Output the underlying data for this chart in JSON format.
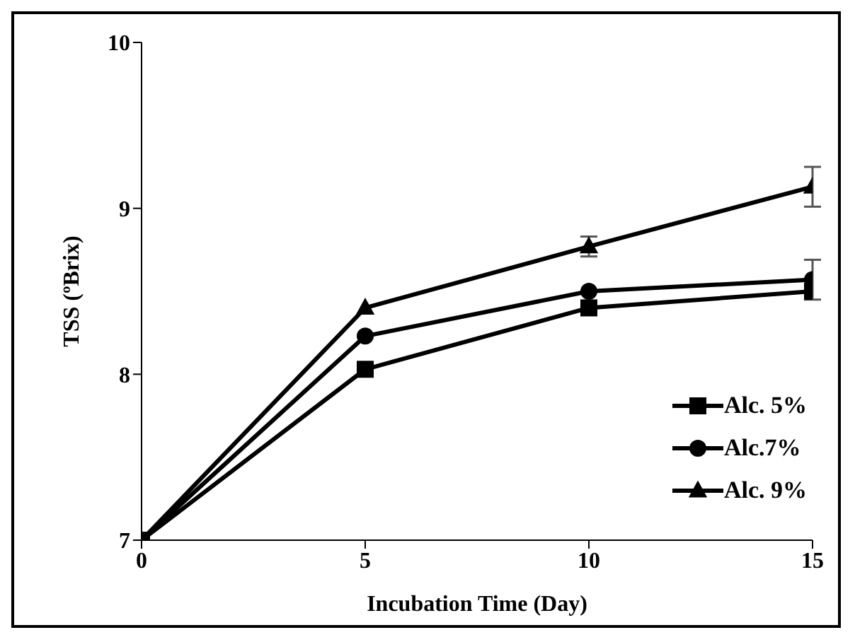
{
  "chart_data": {
    "type": "line",
    "xlabel": "Incubation Time (Day)",
    "ylabel": "TSS  (ºBrix)",
    "x": [
      0,
      5,
      10,
      15
    ],
    "series": [
      {
        "name": "Alc. 5%",
        "color": "#000000",
        "marker": "square",
        "values": [
          7,
          8.03,
          8.4,
          8.5
        ]
      },
      {
        "name": "Alc.7%",
        "color": "#000000",
        "marker": "circle",
        "values": [
          7,
          8.23,
          8.5,
          8.57
        ],
        "errors": [
          null,
          null,
          null,
          0.12
        ]
      },
      {
        "name": "Alc. 9%",
        "color": "#000000",
        "marker": "triangle",
        "values": [
          7,
          8.4,
          8.77,
          9.13
        ],
        "errors": [
          null,
          null,
          0.06,
          0.12
        ]
      }
    ],
    "xlim": [
      0,
      15
    ],
    "xticks": [
      0,
      5,
      10,
      15
    ],
    "ylim": [
      7,
      10
    ],
    "yticks": [
      7,
      8,
      9,
      10
    ],
    "legend": "right",
    "line_style": "solid"
  }
}
